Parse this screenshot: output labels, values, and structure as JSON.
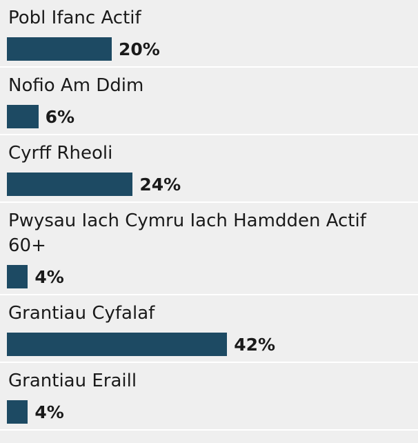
{
  "chart_data": {
    "type": "bar",
    "orientation": "horizontal",
    "categories": [
      "Pobl Ifanc Actif",
      "Nofio Am Ddim",
      "Cyrff Rheoli",
      "Pwysau Iach Cymru Iach Hamdden Actif 60+",
      "Grantiau Cyfalaf",
      "Grantiau Eraill"
    ],
    "values": [
      20,
      6,
      24,
      4,
      42,
      4
    ],
    "value_labels": [
      "20%",
      "6%",
      "24%",
      "4%",
      "42%",
      "4%"
    ],
    "color": "#1d4a63"
  }
}
